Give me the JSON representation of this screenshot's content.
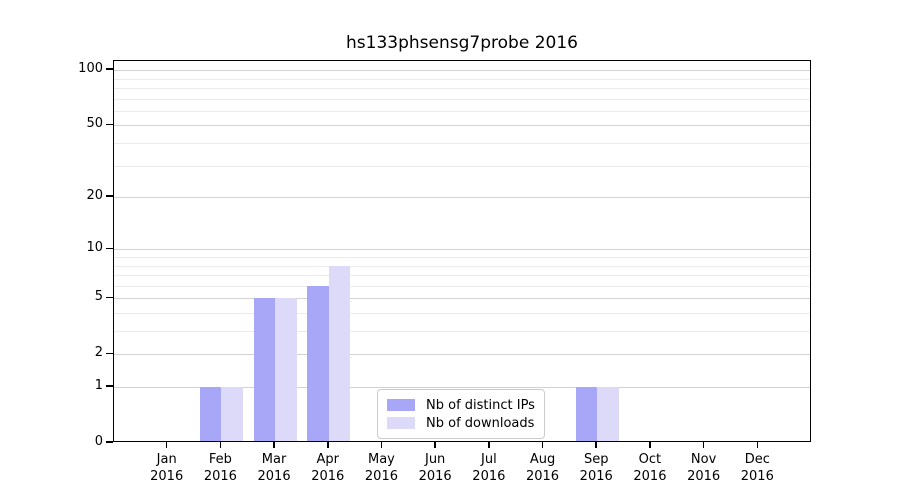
{
  "title": "hs133phsensg7probe 2016",
  "chart_data": {
    "type": "bar",
    "categories": [
      "Jan 2016",
      "Feb 2016",
      "Mar 2016",
      "Apr 2016",
      "May 2016",
      "Jun 2016",
      "Jul 2016",
      "Aug 2016",
      "Sep 2016",
      "Oct 2016",
      "Nov 2016",
      "Dec 2016"
    ],
    "series": [
      {
        "name": "Nb of distinct IPs",
        "color": "#a8a6f7",
        "values": [
          0,
          1,
          5,
          6,
          0,
          0,
          0,
          0,
          1,
          0,
          0,
          0
        ]
      },
      {
        "name": "Nb of downloads",
        "color": "#dcdaf8",
        "values": [
          0,
          1,
          5,
          8,
          0,
          0,
          0,
          0,
          1,
          0,
          0,
          0
        ]
      }
    ],
    "title": "hs133phsensg7probe 2016",
    "xlabel": "",
    "ylabel": "",
    "yscale": "log(1+y)",
    "ylim": [
      0,
      112
    ],
    "yticks": [
      0,
      1,
      2,
      5,
      10,
      20,
      50,
      100
    ],
    "minor_yticks": [
      3,
      4,
      6,
      7,
      8,
      9,
      30,
      40,
      60,
      70,
      80,
      90
    ],
    "grid": true,
    "legend_position": "lower-center-inside"
  },
  "legend": {
    "items": [
      {
        "label": "Nb of distinct IPs",
        "color": "#a8a6f7"
      },
      {
        "label": "Nb of downloads",
        "color": "#dcdaf8"
      }
    ]
  },
  "colors": {
    "bar_distinct_ips": "#a8a6f7",
    "bar_downloads": "#dcdaf8",
    "grid_major": "#d2d2d2",
    "grid_minor": "#ebebeb",
    "axis": "#000000",
    "background": "#ffffff"
  }
}
